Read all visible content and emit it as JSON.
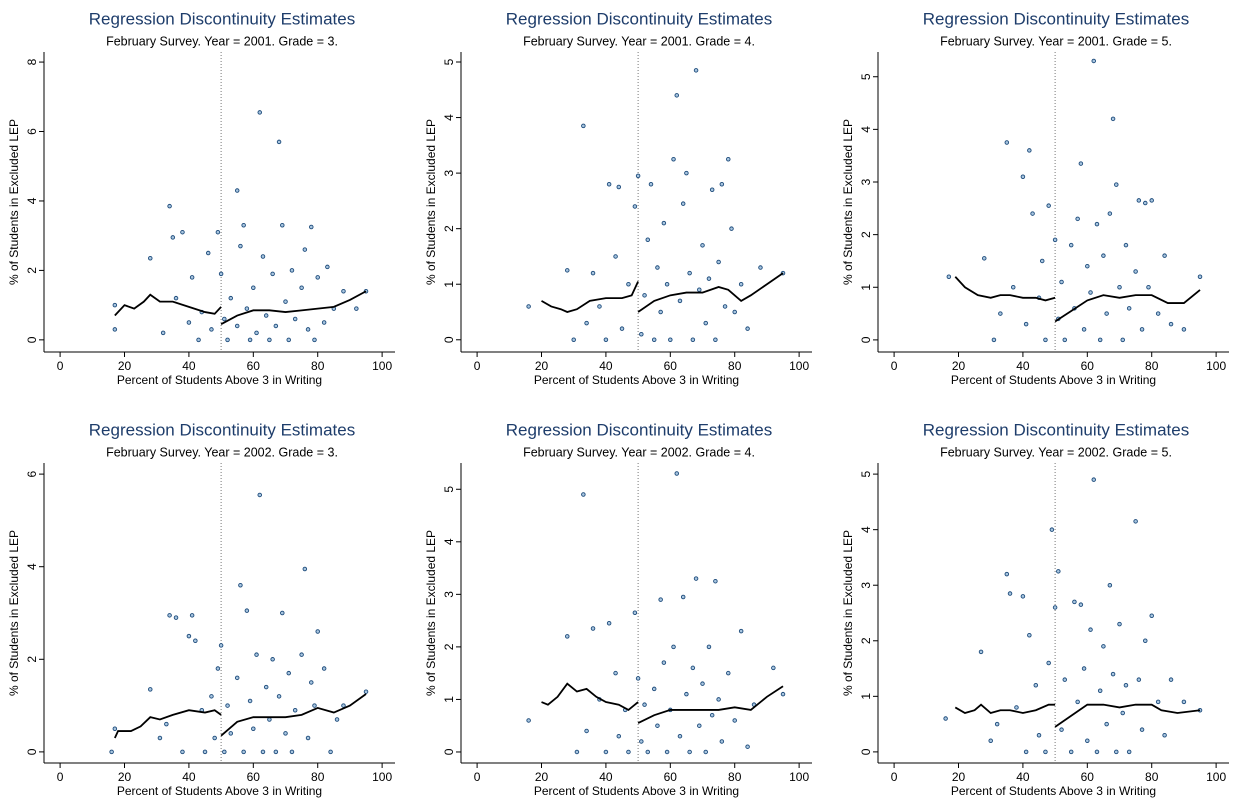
{
  "chart_data": [
    {
      "type": "scatter",
      "title": "Regression Discontinuity Estimates",
      "subtitle": "February Survey. Year = 2001. Grade = 3.",
      "xlabel": "Percent of Students Above 3 in Writing",
      "ylabel": "% of Students in Excluded LEP",
      "xlim": [
        -5,
        104
      ],
      "ylim": [
        -0.35,
        8.29
      ],
      "xticks": [
        0,
        20,
        40,
        60,
        80,
        100
      ],
      "yticks": [
        0,
        2,
        4,
        6,
        8
      ],
      "cutoff": 50,
      "point_color": "#1c4a7a",
      "fit_color": "#000000",
      "points": {
        "x": [
          17,
          17,
          28,
          32,
          34,
          35,
          36,
          38,
          40,
          41,
          43,
          44,
          46,
          47,
          49,
          50,
          51,
          52,
          53,
          55,
          55,
          56,
          57,
          58,
          59,
          60,
          61,
          62,
          63,
          64,
          65,
          66,
          67,
          68,
          69,
          70,
          71,
          72,
          73,
          75,
          76,
          77,
          78,
          79,
          80,
          82,
          83,
          85,
          88,
          92,
          95
        ],
        "y": [
          1.0,
          0.3,
          2.35,
          0.2,
          3.85,
          2.95,
          1.2,
          3.1,
          0.5,
          1.8,
          0.0,
          0.8,
          2.5,
          0.3,
          3.1,
          1.9,
          0.6,
          0.0,
          1.2,
          4.3,
          0.4,
          2.7,
          3.3,
          0.9,
          0.0,
          1.5,
          0.2,
          6.55,
          2.4,
          0.7,
          0.0,
          1.9,
          0.4,
          5.7,
          3.3,
          1.1,
          0.0,
          2.0,
          0.6,
          1.5,
          2.6,
          0.3,
          3.25,
          0.0,
          1.8,
          0.5,
          2.1,
          0.9,
          1.4,
          0.9,
          1.4
        ]
      },
      "fit": [
        {
          "x": [
            17,
            20,
            23,
            26,
            28,
            31,
            35,
            40,
            45,
            48,
            50
          ],
          "y": [
            0.7,
            1.0,
            0.9,
            1.1,
            1.3,
            1.1,
            1.1,
            0.95,
            0.8,
            0.75,
            0.95
          ]
        },
        {
          "x": [
            50,
            55,
            60,
            65,
            70,
            75,
            80,
            85,
            90,
            95
          ],
          "y": [
            0.45,
            0.7,
            0.85,
            0.85,
            0.8,
            0.85,
            0.9,
            0.95,
            1.15,
            1.4
          ]
        }
      ]
    },
    {
      "type": "scatter",
      "title": "Regression Discontinuity Estimates",
      "subtitle": "February Survey. Year = 2001. Grade = 4.",
      "xlabel": "Percent of Students Above 3 in Writing",
      "ylabel": "% of Students in Excluded LEP",
      "xlim": [
        -5,
        104
      ],
      "ylim": [
        -0.22,
        5.18
      ],
      "xticks": [
        0,
        20,
        40,
        60,
        80,
        100
      ],
      "yticks": [
        0,
        1,
        2,
        3,
        4,
        5
      ],
      "cutoff": 50,
      "point_color": "#1c4a7a",
      "fit_color": "#000000",
      "points": {
        "x": [
          16,
          28,
          30,
          33,
          34,
          36,
          38,
          40,
          41,
          43,
          44,
          45,
          47,
          49,
          50,
          51,
          52,
          53,
          54,
          55,
          56,
          57,
          58,
          59,
          60,
          61,
          62,
          63,
          64,
          65,
          66,
          67,
          68,
          69,
          70,
          71,
          72,
          73,
          74,
          75,
          76,
          77,
          78,
          79,
          80,
          82,
          84,
          88,
          95
        ],
        "y": [
          0.6,
          1.25,
          0.0,
          3.85,
          0.3,
          1.2,
          0.6,
          0.0,
          2.8,
          1.5,
          2.75,
          0.2,
          1.0,
          2.4,
          2.95,
          0.1,
          0.8,
          1.8,
          2.8,
          0.0,
          1.3,
          0.5,
          2.1,
          1.0,
          0.0,
          3.25,
          4.4,
          0.7,
          2.45,
          3.0,
          1.2,
          0.0,
          4.85,
          0.9,
          1.7,
          0.3,
          1.1,
          2.7,
          0.0,
          1.4,
          2.8,
          0.6,
          3.25,
          2.0,
          0.5,
          1.0,
          0.2,
          1.3,
          1.2
        ]
      },
      "fit": [
        {
          "x": [
            20,
            23,
            26,
            28,
            31,
            35,
            40,
            45,
            48,
            50
          ],
          "y": [
            0.7,
            0.6,
            0.55,
            0.5,
            0.55,
            0.7,
            0.75,
            0.75,
            0.8,
            1.05
          ]
        },
        {
          "x": [
            50,
            55,
            60,
            65,
            70,
            75,
            78,
            82,
            85,
            90,
            95
          ],
          "y": [
            0.5,
            0.7,
            0.8,
            0.85,
            0.85,
            0.95,
            0.9,
            0.7,
            0.8,
            1.0,
            1.2
          ]
        }
      ]
    },
    {
      "type": "scatter",
      "title": "Regression Discontinuity Estimates",
      "subtitle": "February Survey. Year = 2001. Grade = 5.",
      "xlabel": "Percent of Students Above 3 in Writing",
      "ylabel": "% of Students in Excluded LEP",
      "xlim": [
        -5,
        104
      ],
      "ylim": [
        -0.23,
        5.47
      ],
      "xticks": [
        0,
        20,
        40,
        60,
        80,
        100
      ],
      "yticks": [
        0,
        1,
        2,
        3,
        4,
        5
      ],
      "cutoff": 50,
      "point_color": "#1c4a7a",
      "fit_color": "#000000",
      "points": {
        "x": [
          17,
          28,
          31,
          33,
          35,
          37,
          40,
          41,
          42,
          43,
          45,
          46,
          47,
          48,
          50,
          51,
          52,
          53,
          55,
          56,
          57,
          58,
          59,
          60,
          61,
          62,
          63,
          64,
          65,
          66,
          67,
          68,
          69,
          70,
          71,
          72,
          73,
          75,
          76,
          77,
          78,
          79,
          80,
          82,
          84,
          86,
          90,
          95
        ],
        "y": [
          1.2,
          1.55,
          0.0,
          0.5,
          3.75,
          1.0,
          3.1,
          0.3,
          3.6,
          2.4,
          0.8,
          1.5,
          0.0,
          2.55,
          1.9,
          0.4,
          1.1,
          0.0,
          1.8,
          0.6,
          2.3,
          3.35,
          0.2,
          1.4,
          0.9,
          5.3,
          2.2,
          0.0,
          1.6,
          0.5,
          2.4,
          4.2,
          2.95,
          1.0,
          0.0,
          1.8,
          0.6,
          1.3,
          2.65,
          0.2,
          2.6,
          1.0,
          2.65,
          0.5,
          1.6,
          0.3,
          0.2,
          1.2
        ]
      },
      "fit": [
        {
          "x": [
            19,
            22,
            26,
            30,
            33,
            36,
            40,
            44,
            47,
            50
          ],
          "y": [
            1.2,
            1.0,
            0.85,
            0.8,
            0.85,
            0.85,
            0.8,
            0.8,
            0.75,
            0.8
          ]
        },
        {
          "x": [
            50,
            55,
            60,
            65,
            70,
            75,
            80,
            85,
            90,
            95
          ],
          "y": [
            0.35,
            0.55,
            0.75,
            0.85,
            0.8,
            0.85,
            0.85,
            0.7,
            0.7,
            0.95
          ]
        }
      ]
    },
    {
      "type": "scatter",
      "title": "Regression Discontinuity Estimates",
      "subtitle": "February Survey. Year = 2002. Grade = 3.",
      "xlabel": "Percent of Students Above 3 in Writing",
      "ylabel": "% of Students in Excluded LEP",
      "xlim": [
        -5,
        104
      ],
      "ylim": [
        -0.24,
        6.24
      ],
      "xticks": [
        0,
        20,
        40,
        60,
        80,
        100
      ],
      "yticks": [
        0,
        2,
        4,
        6
      ],
      "cutoff": 50,
      "point_color": "#1c4a7a",
      "fit_color": "#000000",
      "points": {
        "x": [
          16,
          17,
          28,
          31,
          33,
          34,
          36,
          38,
          40,
          41,
          42,
          44,
          45,
          47,
          48,
          49,
          50,
          51,
          52,
          53,
          55,
          56,
          57,
          58,
          59,
          60,
          61,
          62,
          63,
          64,
          65,
          66,
          67,
          68,
          69,
          70,
          71,
          72,
          73,
          75,
          76,
          77,
          78,
          79,
          80,
          82,
          84,
          86,
          88,
          95
        ],
        "y": [
          0.0,
          0.5,
          1.35,
          0.3,
          0.6,
          2.95,
          2.9,
          0.0,
          2.5,
          2.95,
          2.4,
          0.9,
          0.0,
          1.2,
          0.3,
          1.8,
          2.3,
          0.0,
          1.0,
          0.4,
          1.6,
          3.6,
          0.0,
          3.05,
          1.1,
          0.5,
          2.1,
          5.55,
          0.0,
          1.4,
          0.7,
          2.0,
          0.0,
          1.2,
          3.0,
          0.4,
          1.7,
          0.0,
          0.9,
          2.1,
          3.95,
          0.3,
          1.5,
          1.0,
          2.6,
          1.8,
          0.0,
          0.7,
          1.0,
          1.3
        ]
      },
      "fit": [
        {
          "x": [
            17,
            18,
            22,
            25,
            28,
            31,
            35,
            40,
            45,
            48,
            50
          ],
          "y": [
            0.3,
            0.45,
            0.45,
            0.55,
            0.75,
            0.7,
            0.8,
            0.9,
            0.85,
            0.9,
            0.8
          ]
        },
        {
          "x": [
            50,
            55,
            60,
            65,
            70,
            75,
            80,
            85,
            90,
            95
          ],
          "y": [
            0.35,
            0.65,
            0.75,
            0.75,
            0.75,
            0.8,
            0.95,
            0.85,
            1.0,
            1.25
          ]
        }
      ]
    },
    {
      "type": "scatter",
      "title": "Regression Discontinuity Estimates",
      "subtitle": "February Survey. Year = 2002. Grade = 4.",
      "xlabel": "Percent of Students Above 3 in Writing",
      "ylabel": "% of Students in Excluded LEP",
      "xlim": [
        -5,
        104
      ],
      "ylim": [
        -0.21,
        5.5
      ],
      "xticks": [
        0,
        20,
        40,
        60,
        80,
        100
      ],
      "yticks": [
        0,
        1,
        2,
        3,
        4,
        5
      ],
      "cutoff": 50,
      "point_color": "#1c4a7a",
      "fit_color": "#000000",
      "points": {
        "x": [
          16,
          28,
          31,
          33,
          34,
          36,
          38,
          40,
          41,
          43,
          44,
          46,
          47,
          49,
          50,
          51,
          52,
          53,
          55,
          56,
          57,
          58,
          59,
          60,
          61,
          62,
          63,
          64,
          65,
          66,
          67,
          68,
          69,
          70,
          71,
          72,
          73,
          74,
          75,
          76,
          78,
          80,
          82,
          84,
          86,
          92,
          95
        ],
        "y": [
          0.6,
          2.2,
          0.0,
          4.9,
          0.4,
          2.35,
          1.0,
          0.0,
          2.45,
          1.5,
          0.3,
          0.8,
          0.0,
          2.65,
          1.4,
          0.2,
          0.9,
          0.0,
          1.2,
          0.5,
          2.9,
          1.7,
          0.0,
          0.8,
          2.0,
          5.3,
          0.3,
          2.95,
          1.1,
          0.0,
          1.6,
          3.3,
          0.5,
          1.3,
          0.0,
          2.0,
          0.7,
          3.25,
          1.0,
          0.2,
          1.5,
          0.6,
          2.3,
          0.1,
          0.9,
          1.6,
          1.1
        ]
      },
      "fit": [
        {
          "x": [
            20,
            22,
            25,
            28,
            31,
            34,
            37,
            40,
            44,
            47,
            50
          ],
          "y": [
            0.95,
            0.9,
            1.05,
            1.3,
            1.15,
            1.2,
            1.05,
            0.95,
            0.9,
            0.8,
            0.95
          ]
        },
        {
          "x": [
            50,
            55,
            60,
            65,
            70,
            75,
            80,
            85,
            90,
            95
          ],
          "y": [
            0.55,
            0.7,
            0.8,
            0.8,
            0.8,
            0.8,
            0.85,
            0.8,
            1.05,
            1.25
          ]
        }
      ]
    },
    {
      "type": "scatter",
      "title": "Regression Discontinuity Estimates",
      "subtitle": "February Survey. Year = 2002. Grade = 5.",
      "xlabel": "Percent of Students Above 3 in Writing",
      "ylabel": "% of Students in Excluded LEP",
      "xlim": [
        -5,
        104
      ],
      "ylim": [
        -0.2,
        5.2
      ],
      "xticks": [
        0,
        20,
        40,
        60,
        80,
        100
      ],
      "yticks": [
        0,
        1,
        2,
        3,
        4,
        5
      ],
      "cutoff": 50,
      "point_color": "#1c4a7a",
      "fit_color": "#000000",
      "points": {
        "x": [
          16,
          27,
          30,
          32,
          35,
          36,
          38,
          40,
          41,
          42,
          44,
          45,
          47,
          48,
          49,
          50,
          51,
          52,
          53,
          55,
          56,
          57,
          58,
          59,
          60,
          61,
          62,
          63,
          64,
          65,
          66,
          67,
          68,
          69,
          70,
          71,
          72,
          73,
          75,
          76,
          77,
          78,
          80,
          82,
          84,
          86,
          90,
          95
        ],
        "y": [
          0.6,
          1.8,
          0.2,
          0.5,
          3.2,
          2.85,
          0.8,
          2.8,
          0.0,
          2.1,
          1.2,
          0.3,
          0.0,
          1.6,
          4.0,
          2.6,
          3.25,
          0.4,
          1.3,
          0.0,
          2.7,
          0.9,
          2.65,
          1.5,
          0.2,
          2.2,
          4.9,
          0.0,
          1.1,
          1.9,
          0.5,
          3.0,
          1.4,
          0.0,
          2.3,
          0.7,
          1.2,
          0.0,
          4.15,
          1.3,
          0.4,
          2.0,
          2.45,
          0.9,
          0.3,
          1.3,
          0.9,
          0.75
        ]
      },
      "fit": [
        {
          "x": [
            19,
            22,
            25,
            27,
            30,
            33,
            36,
            40,
            44,
            48,
            50
          ],
          "y": [
            0.8,
            0.7,
            0.75,
            0.85,
            0.7,
            0.75,
            0.75,
            0.7,
            0.75,
            0.85,
            0.85
          ]
        },
        {
          "x": [
            50,
            55,
            60,
            65,
            70,
            75,
            80,
            83,
            88,
            95
          ],
          "y": [
            0.45,
            0.65,
            0.85,
            0.85,
            0.8,
            0.85,
            0.85,
            0.75,
            0.7,
            0.75
          ]
        }
      ]
    }
  ]
}
